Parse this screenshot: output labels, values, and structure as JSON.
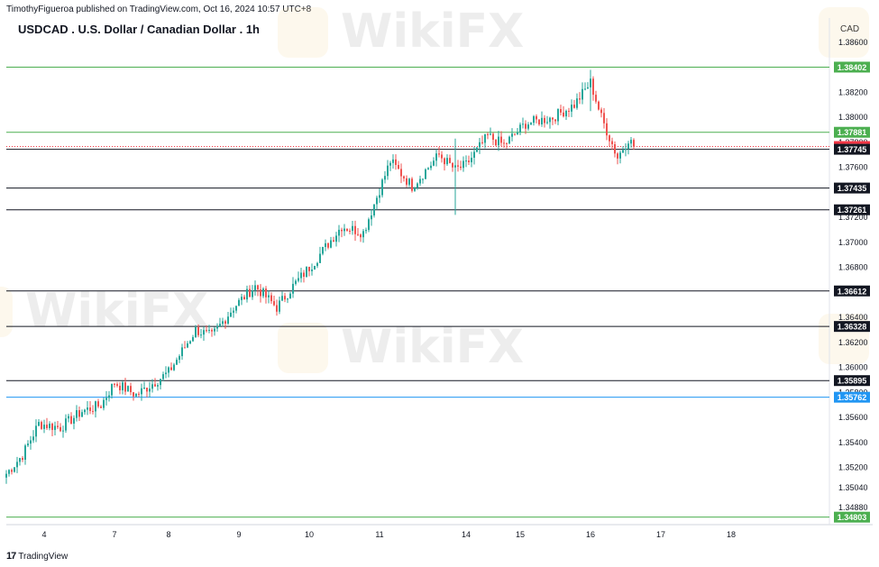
{
  "header": {
    "attribution": "TimothyFigueroa published on TradingView.com, Oct 16, 2024 10:57 UTC+8",
    "title": "USDCAD . U.S. Dollar / Canadian Dollar . 1h",
    "currency": "CAD"
  },
  "footer": {
    "logo_text": "TradingView"
  },
  "watermark": {
    "text": "WikiFX"
  },
  "colors": {
    "up": "#26a69a",
    "down": "#ef5350",
    "support_resistance_green": "#4caf50",
    "level_black": "#131722",
    "level_blue": "#2196f3",
    "current_price_red": "#f23645"
  },
  "chart_data": {
    "type": "candlestick",
    "symbol": "USDCAD",
    "title": "USDCAD . U.S. Dollar / Canadian Dollar . 1h",
    "timeframe": "1h",
    "ylabel": "CAD",
    "ylim": [
      1.3478,
      1.3875
    ],
    "y_ticks": [
      1.3488,
      1.3504,
      1.352,
      1.354,
      1.356,
      1.358,
      1.36,
      1.362,
      1.364,
      1.368,
      1.37,
      1.372,
      1.376,
      1.378,
      1.38,
      1.382,
      1.386
    ],
    "y_tick_labels": [
      "1.34880",
      "1.35040",
      "1.35200",
      "1.35400",
      "1.35600",
      "1.35800",
      "1.36000",
      "1.36200",
      "1.36400",
      "1.36800",
      "1.37000",
      "1.37200",
      "1.37600",
      "1.37800",
      "1.38000",
      "1.38200",
      "1.38600"
    ],
    "x_ticks": [
      {
        "label": "4",
        "index": 14
      },
      {
        "label": "7",
        "index": 40
      },
      {
        "label": "8",
        "index": 60
      },
      {
        "label": "9",
        "index": 86
      },
      {
        "label": "10",
        "index": 112
      },
      {
        "label": "11",
        "index": 138
      },
      {
        "label": "14",
        "index": 170
      },
      {
        "label": "15",
        "index": 190
      },
      {
        "label": "16",
        "index": 216
      },
      {
        "label": "17",
        "index": 242
      },
      {
        "label": "18",
        "index": 268
      }
    ],
    "levels": [
      {
        "price": 1.38402,
        "label": "1.38402",
        "color": "#4caf50",
        "style": "solid"
      },
      {
        "price": 1.37881,
        "label": "1.37881",
        "color": "#4caf50",
        "style": "solid"
      },
      {
        "price": 1.37767,
        "label": "1.37767",
        "color": "#f23645",
        "style": "dotted"
      },
      {
        "price": 1.37745,
        "label": "1.37745",
        "color": "#131722",
        "style": "solid"
      },
      {
        "price": 1.37435,
        "label": "1.37435",
        "color": "#131722",
        "style": "solid"
      },
      {
        "price": 1.37261,
        "label": "1.37261",
        "color": "#131722",
        "style": "solid"
      },
      {
        "price": 1.36612,
        "label": "1.36612",
        "color": "#131722",
        "style": "solid"
      },
      {
        "price": 1.36328,
        "label": "1.36328",
        "color": "#131722",
        "style": "solid"
      },
      {
        "price": 1.35895,
        "label": "1.35895",
        "color": "#131722",
        "style": "solid"
      },
      {
        "price": 1.35762,
        "label": "1.35762",
        "color": "#2196f3",
        "style": "solid"
      },
      {
        "price": 1.34803,
        "label": "1.34803",
        "color": "#4caf50",
        "style": "solid"
      }
    ],
    "current_price": 1.37767,
    "anchors": [
      {
        "index": 0,
        "price": 1.3515
      },
      {
        "index": 6,
        "price": 1.353
      },
      {
        "index": 12,
        "price": 1.3555
      },
      {
        "index": 20,
        "price": 1.3552
      },
      {
        "index": 28,
        "price": 1.3565
      },
      {
        "index": 35,
        "price": 1.357
      },
      {
        "index": 40,
        "price": 1.3588
      },
      {
        "index": 48,
        "price": 1.3578
      },
      {
        "index": 60,
        "price": 1.3596
      },
      {
        "index": 70,
        "price": 1.363
      },
      {
        "index": 76,
        "price": 1.3625
      },
      {
        "index": 84,
        "price": 1.3648
      },
      {
        "index": 92,
        "price": 1.3665
      },
      {
        "index": 100,
        "price": 1.3648
      },
      {
        "index": 106,
        "price": 1.3665
      },
      {
        "index": 114,
        "price": 1.3685
      },
      {
        "index": 124,
        "price": 1.3713
      },
      {
        "index": 132,
        "price": 1.3708
      },
      {
        "index": 142,
        "price": 1.3765
      },
      {
        "index": 150,
        "price": 1.3745
      },
      {
        "index": 160,
        "price": 1.377
      },
      {
        "index": 166,
        "price": 1.3758
      },
      {
        "index": 170,
        "price": 1.3762
      },
      {
        "index": 178,
        "price": 1.3785
      },
      {
        "index": 184,
        "price": 1.3778
      },
      {
        "index": 192,
        "price": 1.3795
      },
      {
        "index": 202,
        "price": 1.38
      },
      {
        "index": 210,
        "price": 1.381
      },
      {
        "index": 216,
        "price": 1.3828
      },
      {
        "index": 220,
        "price": 1.38
      },
      {
        "index": 226,
        "price": 1.3768
      },
      {
        "index": 230,
        "price": 1.3783
      },
      {
        "index": 232,
        "price": 1.37767
      }
    ],
    "spikes": [
      {
        "index": 166,
        "low": 1.3722,
        "high": 1.3783
      },
      {
        "index": 216,
        "low": 1.3805,
        "high": 1.3838
      }
    ],
    "last_index": 232
  }
}
